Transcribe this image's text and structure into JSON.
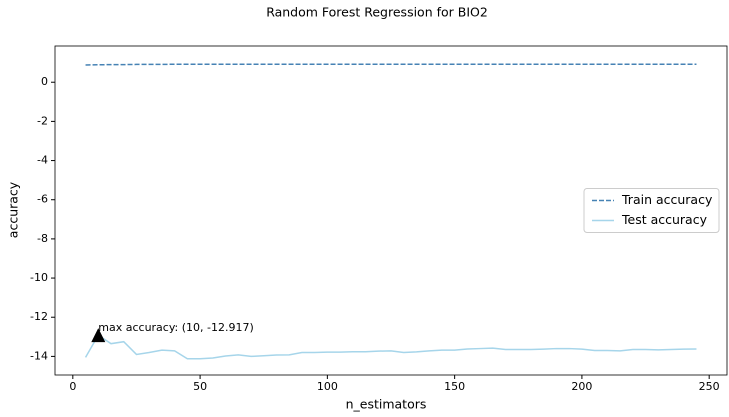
{
  "chart_data": {
    "type": "line",
    "title": "Random Forest Regression for BIO2",
    "x_label": "n_estimators",
    "y_label": "accuracy",
    "x": [
      5,
      10,
      15,
      20,
      25,
      30,
      35,
      40,
      45,
      50,
      55,
      60,
      65,
      70,
      75,
      80,
      85,
      90,
      95,
      100,
      105,
      110,
      115,
      120,
      125,
      130,
      135,
      140,
      145,
      150,
      155,
      160,
      165,
      170,
      175,
      180,
      185,
      190,
      195,
      200,
      205,
      210,
      215,
      220,
      225,
      230,
      235,
      240,
      245
    ],
    "series": [
      {
        "name": "Train accuracy",
        "color": "#4682b4",
        "dash": true,
        "values": [
          0.88,
          0.89,
          0.9,
          0.9,
          0.91,
          0.91,
          0.91,
          0.92,
          0.92,
          0.92,
          0.92,
          0.92,
          0.92,
          0.92,
          0.92,
          0.92,
          0.92,
          0.92,
          0.92,
          0.92,
          0.92,
          0.92,
          0.92,
          0.92,
          0.92,
          0.92,
          0.92,
          0.92,
          0.92,
          0.92,
          0.92,
          0.92,
          0.92,
          0.92,
          0.92,
          0.92,
          0.92,
          0.92,
          0.92,
          0.92,
          0.92,
          0.92,
          0.92,
          0.92,
          0.92,
          0.92,
          0.92,
          0.92,
          0.92
        ]
      },
      {
        "name": "Test accuracy",
        "color": "#a6d5ea",
        "dash": false,
        "values": [
          -14.05,
          -12.917,
          -13.35,
          -13.25,
          -13.9,
          -13.8,
          -13.68,
          -13.72,
          -14.12,
          -14.12,
          -14.08,
          -13.98,
          -13.92,
          -14.0,
          -13.97,
          -13.93,
          -13.92,
          -13.8,
          -13.8,
          -13.78,
          -13.78,
          -13.76,
          -13.76,
          -13.73,
          -13.72,
          -13.8,
          -13.77,
          -13.72,
          -13.68,
          -13.68,
          -13.62,
          -13.6,
          -13.58,
          -13.65,
          -13.65,
          -13.65,
          -13.63,
          -13.6,
          -13.6,
          -13.63,
          -13.7,
          -13.7,
          -13.72,
          -13.65,
          -13.65,
          -13.67,
          -13.65,
          -13.63,
          -13.62
        ]
      }
    ],
    "annotation": {
      "text": "max accuracy: (10, -12.917)",
      "x": 10,
      "y": -12.917
    },
    "xlim": [
      -7,
      257
    ],
    "ylim": [
      -14.95,
      1.85
    ],
    "xticks": [
      0,
      50,
      100,
      150,
      200,
      250
    ],
    "yticks": [
      0,
      -2,
      -4,
      -6,
      -8,
      -10,
      -12,
      -14
    ],
    "legend": "center right"
  }
}
